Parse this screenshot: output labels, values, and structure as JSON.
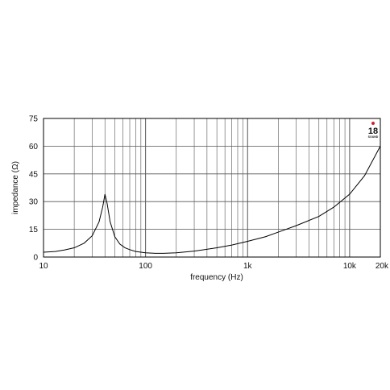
{
  "chart_data": {
    "type": "line",
    "xlabel": "frequency (Hz)",
    "ylabel": "impedance (Ω)",
    "x_scale": "log",
    "xlim": [
      10,
      20000
    ],
    "ylim": [
      0,
      75
    ],
    "grid": true,
    "x_ticks": [
      {
        "value": 10,
        "label": "10"
      },
      {
        "value": 100,
        "label": "100"
      },
      {
        "value": 1000,
        "label": "1k"
      },
      {
        "value": 10000,
        "label": "10k"
      },
      {
        "value": 20000,
        "label": "20k"
      }
    ],
    "y_ticks": [
      {
        "value": 0,
        "label": "0"
      },
      {
        "value": 15,
        "label": "15"
      },
      {
        "value": 30,
        "label": "30"
      },
      {
        "value": 45,
        "label": "45"
      },
      {
        "value": 60,
        "label": "60"
      },
      {
        "value": 75,
        "label": "75"
      }
    ],
    "series": [
      {
        "color": "#000000",
        "points": [
          [
            10,
            2.6
          ],
          [
            13,
            3.0
          ],
          [
            16,
            3.8
          ],
          [
            20,
            5.0
          ],
          [
            25,
            7.5
          ],
          [
            30,
            11.5
          ],
          [
            35,
            19.0
          ],
          [
            38,
            27.0
          ],
          [
            40,
            34.0
          ],
          [
            42,
            29.0
          ],
          [
            45,
            19.0
          ],
          [
            50,
            11.0
          ],
          [
            56,
            7.0
          ],
          [
            63,
            5.0
          ],
          [
            70,
            4.0
          ],
          [
            80,
            3.0
          ],
          [
            100,
            2.3
          ],
          [
            125,
            2.0
          ],
          [
            150,
            2.0
          ],
          [
            200,
            2.3
          ],
          [
            300,
            3.2
          ],
          [
            500,
            5.0
          ],
          [
            700,
            6.5
          ],
          [
            1000,
            8.5
          ],
          [
            1500,
            11.0
          ],
          [
            2000,
            13.5
          ],
          [
            3000,
            17.0
          ],
          [
            5000,
            22.0
          ],
          [
            7000,
            27.0
          ],
          [
            10000,
            34.0
          ],
          [
            14000,
            44.0
          ],
          [
            20000,
            60.0
          ]
        ]
      }
    ]
  },
  "logo": {
    "text": "18",
    "subtext": "SOUND",
    "accent_color": "#d0202a"
  }
}
